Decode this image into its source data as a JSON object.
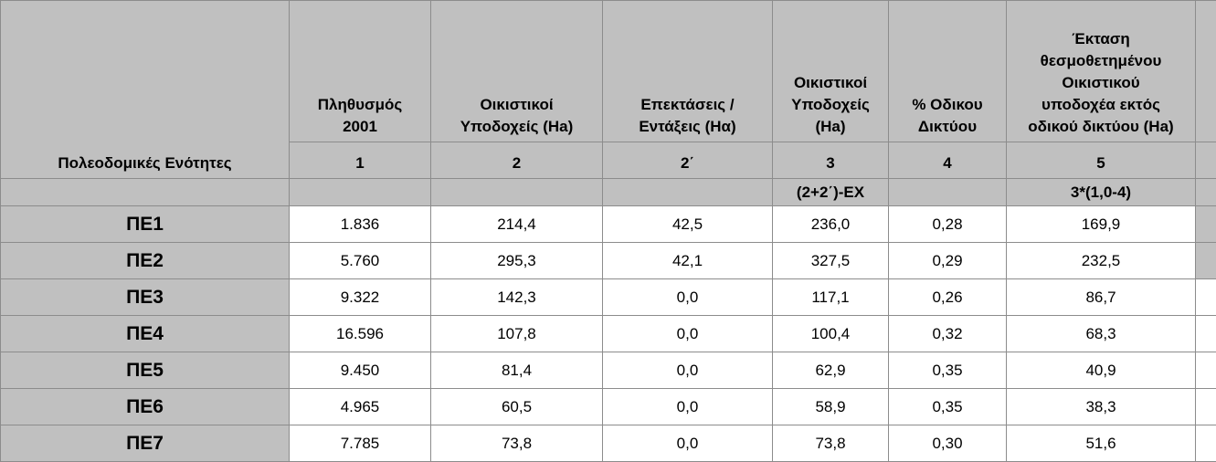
{
  "table": {
    "row_header_label": "Πολεοδομικές Ενότητες",
    "headers": [
      [
        "Πληθυσμός",
        "2001"
      ],
      [
        "Οικιστικοί",
        "Υποδοχείς (Ha)"
      ],
      [
        "Επεκτάσεις /",
        "Εντάξεις (Ηα)"
      ],
      [
        "Οικιστικοί",
        "Υποδοχείς",
        "(Ha)"
      ],
      [
        "% Οδικου",
        "Δικτύου"
      ],
      [
        "Έκταση",
        "θεσμοθετημένου",
        "Οικιστικού",
        "υποδοχέα εκτός",
        "οδικού δικτύου (Ha)"
      ]
    ],
    "column_numbers": [
      "1",
      "2",
      "2΄",
      "3",
      "4",
      "5"
    ],
    "formulas": [
      null,
      null,
      null,
      "(2+2΄)-ΕΧ",
      null,
      "3*(1,0-4)"
    ],
    "rows": [
      [
        "ΠΕ1",
        "1.836",
        "214,4",
        "42,5",
        "236,0",
        "0,28",
        "169,9"
      ],
      [
        "ΠΕ2",
        "5.760",
        "295,3",
        "42,1",
        "327,5",
        "0,29",
        "232,5"
      ],
      [
        "ΠΕ3",
        "9.322",
        "142,3",
        "0,0",
        "117,1",
        "0,26",
        "86,7"
      ],
      [
        "ΠΕ4",
        "16.596",
        "107,8",
        "0,0",
        "100,4",
        "0,32",
        "68,3"
      ],
      [
        "ΠΕ5",
        "9.450",
        "81,4",
        "0,0",
        "62,9",
        "0,35",
        "40,9"
      ],
      [
        "ΠΕ6",
        "4.965",
        "60,5",
        "0,0",
        "58,9",
        "0,35",
        "38,3"
      ],
      [
        "ΠΕ7",
        "7.785",
        "73,8",
        "0,0",
        "73,8",
        "0,30",
        "51,6"
      ]
    ]
  }
}
